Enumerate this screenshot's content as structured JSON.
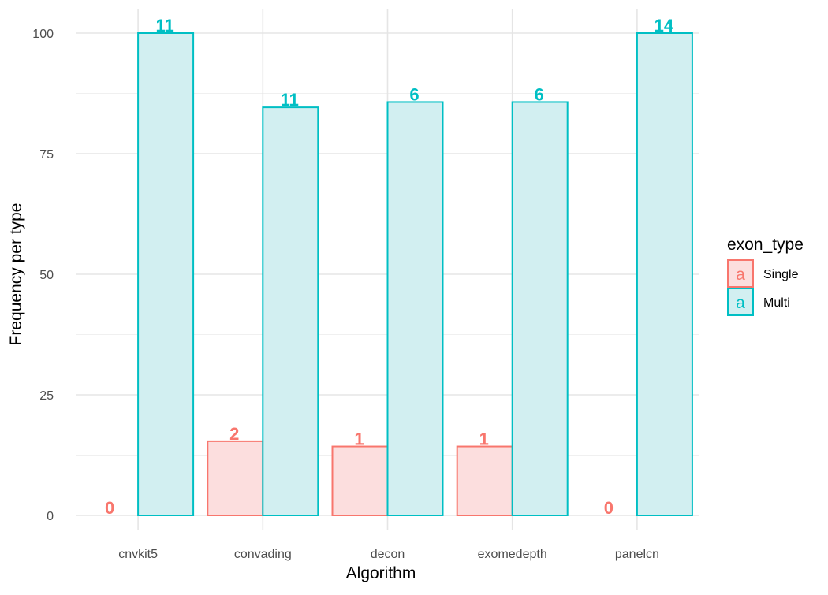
{
  "chart_data": {
    "type": "bar",
    "title": "",
    "xlabel": "Algorithm",
    "ylabel": "Frequency per type",
    "categories": [
      "cnvkit5",
      "convading",
      "decon",
      "exomedepth",
      "panelcn"
    ],
    "ylim": [
      0,
      100
    ],
    "yticks": [
      "0",
      "25",
      "50",
      "75",
      "100"
    ],
    "grid": true,
    "legend": {
      "title": "exon_type",
      "placement": "right",
      "glyph": "a"
    },
    "series": [
      {
        "name": "Single",
        "color": "#F8766D",
        "fill": "#FCDEDE",
        "values": [
          0,
          15.38,
          14.29,
          14.29,
          0
        ],
        "labels": [
          "0",
          "2",
          "1",
          "1",
          "0"
        ]
      },
      {
        "name": "Multi",
        "color": "#00BFC4",
        "fill": "#D2EFF1",
        "values": [
          100,
          84.62,
          85.71,
          85.71,
          100
        ],
        "labels": [
          "11",
          "11",
          "6",
          "6",
          "14"
        ]
      }
    ]
  }
}
